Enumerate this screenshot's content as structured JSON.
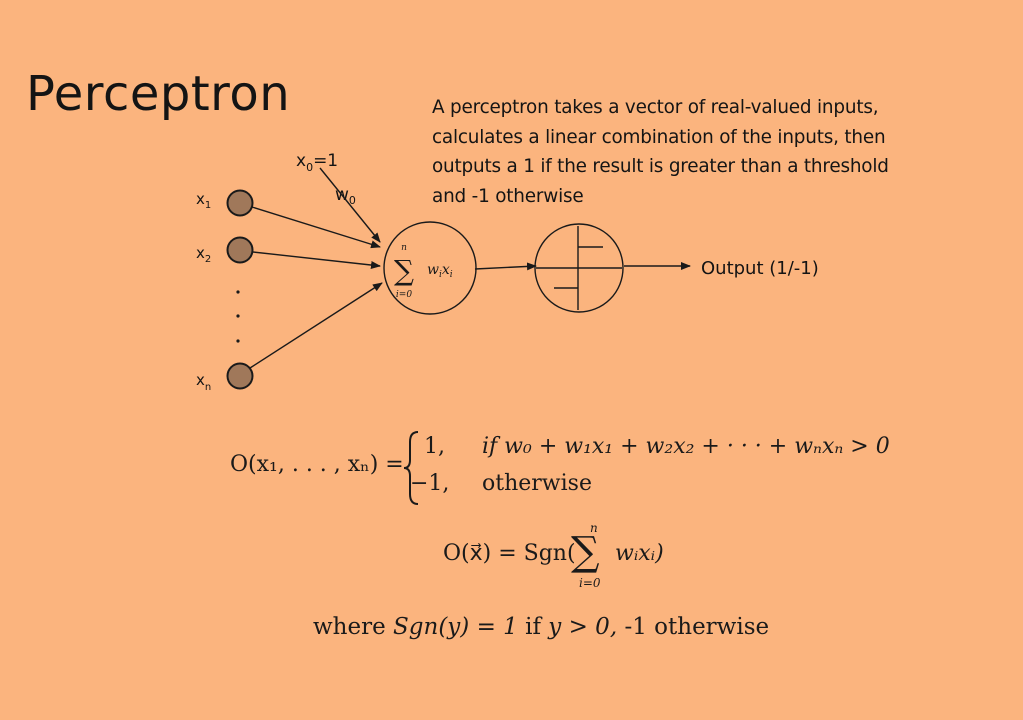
{
  "slide": {
    "title": "Perceptron",
    "description_lines": [
      "A perceptron takes a vector of real-valued inputs,",
      "calculates a linear combination of the inputs, then",
      "outputs a 1 if the result is greater than a threshold",
      "and -1 otherwise"
    ]
  },
  "diagram": {
    "bias_input": "x",
    "bias_input_subscript": "0",
    "bias_input_value": "=1",
    "bias_weight": "w",
    "bias_weight_subscript": "0",
    "inputs": [
      {
        "label": "x",
        "subscript": "1"
      },
      {
        "label": "x",
        "subscript": "2"
      },
      {
        "label": "x",
        "subscript": "n"
      }
    ],
    "sum_node": {
      "upper": "n",
      "term": "w",
      "term_sub": "i",
      "term2": "x",
      "term2_sub": "i",
      "lower": "i=0"
    },
    "output_label": "Output (1/-1)",
    "colors": {
      "background": "#FBB47E",
      "input_node": "#A0785A",
      "line": "#1a1a1a"
    }
  },
  "equations": {
    "piecewise_lhs": "O(x₁, . . . , xₙ) =",
    "case1_value": "1,",
    "case1_condition": "if w₀ + w₁x₁ + w₂x₂ + · · · + wₙxₙ > 0",
    "case2_value": "−1,",
    "case2_condition": "otherwise",
    "vector_lhs": "O(x⃗) = Sgn(",
    "vector_sum_upper": "n",
    "vector_sum_lower": "i=0",
    "vector_sum_term": "wᵢxᵢ)",
    "where_prefix": "where",
    "where_func": "Sgn(y) = 1",
    "where_if": "if",
    "where_cond": "y > 0,",
    "where_suffix": "-1 otherwise"
  }
}
